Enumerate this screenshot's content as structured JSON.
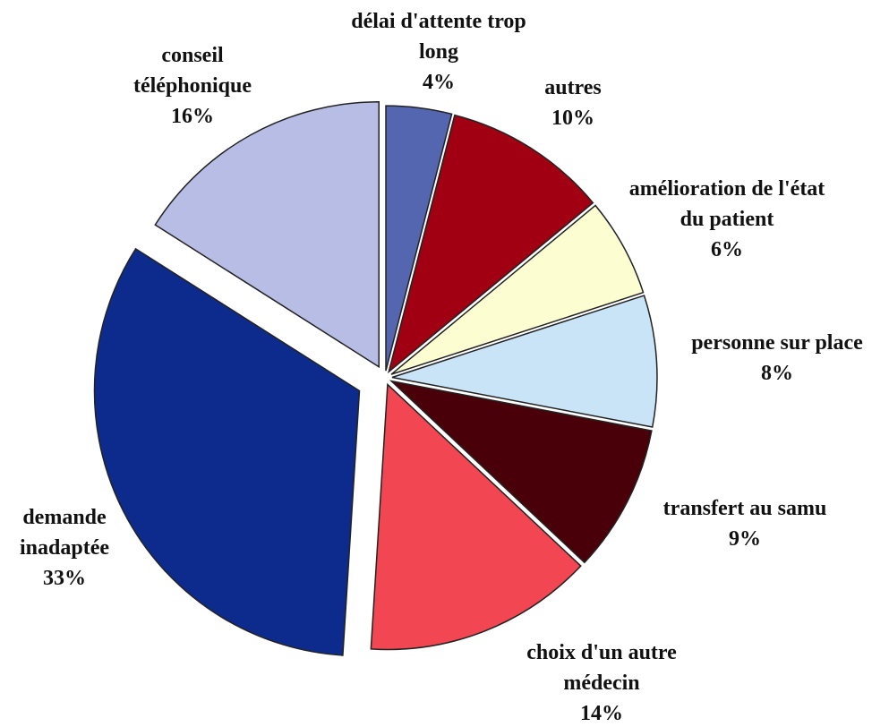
{
  "chart_data": {
    "type": "pie",
    "categories": [
      "délai d'attente trop long",
      "autres",
      "amélioration de l'état du patient",
      "personne sur place",
      "transfert au samu",
      "choix d'un autre médecin",
      "demande inadaptée",
      "conseil téléphonique"
    ],
    "values": [
      4,
      10,
      6,
      8,
      9,
      14,
      33,
      16
    ],
    "value_labels": [
      "4%",
      "10%",
      "6%",
      "8%",
      "9%",
      "14%",
      "33%",
      "16%"
    ],
    "colors": [
      "#5566b0",
      "#a00012",
      "#fdfdd2",
      "#c8e4f6",
      "#4a0008",
      "#f24652",
      "#0c2b8c",
      "#b8bde6"
    ]
  }
}
